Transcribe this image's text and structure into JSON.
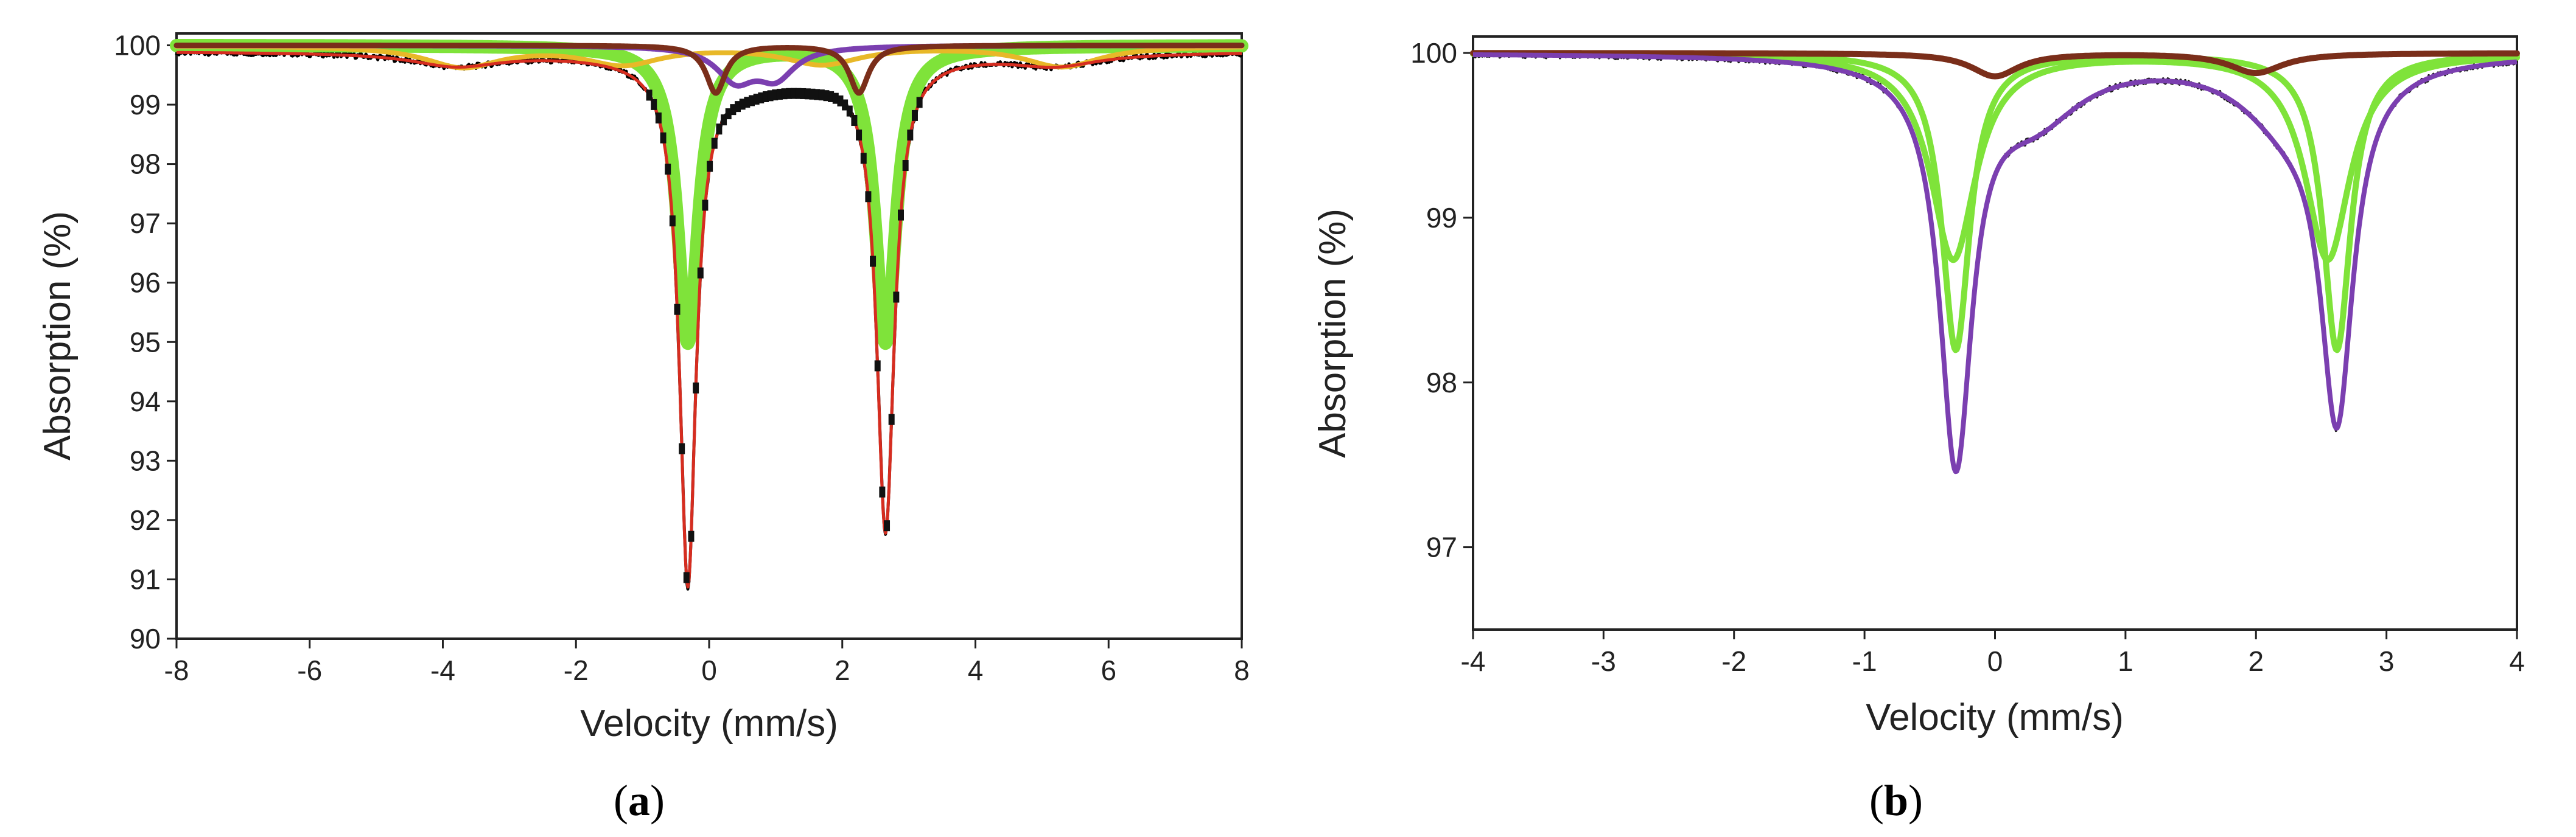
{
  "chart_data": [
    {
      "panel": "a",
      "type": "line",
      "caption": {
        "open": "(",
        "letter": "a",
        "close": ")"
      },
      "xlabel": "Velocity (mm/s)",
      "ylabel": "Absorption (%)",
      "xlim": [
        -8,
        8
      ],
      "ylim": [
        90,
        100.2
      ],
      "xticks": [
        -8,
        -6,
        -4,
        -2,
        0,
        2,
        4,
        6,
        8
      ],
      "yticks": [
        90,
        91,
        92,
        93,
        94,
        95,
        96,
        97,
        98,
        99,
        100
      ],
      "grid": false,
      "legend": "none",
      "components": [
        {
          "color": "#7fe33a",
          "width": 22,
          "baseline": 100,
          "peaks": [
            {
              "x0": -0.32,
              "depth": 5.0,
              "w": 0.38
            },
            {
              "x0": 2.65,
              "depth": 5.0,
              "w": 0.38
            }
          ]
        },
        {
          "color": "#e8b828",
          "width": 8,
          "baseline": 100,
          "peaks": [
            {
              "x0": -3.7,
              "depth": 0.35,
              "w": 1.4
            },
            {
              "x0": -1.3,
              "depth": 0.3,
              "w": 1.4
            },
            {
              "x0": 1.7,
              "depth": 0.3,
              "w": 1.4
            },
            {
              "x0": 5.3,
              "depth": 0.35,
              "w": 1.4
            }
          ]
        },
        {
          "color": "#7b3fb0",
          "width": 9,
          "baseline": 100,
          "peaks": [
            {
              "x0": 0.4,
              "depth": 0.55,
              "w": 0.7
            },
            {
              "x0": 1.0,
              "depth": 0.5,
              "w": 0.7
            }
          ]
        },
        {
          "color": "#7a2e1a",
          "width": 9,
          "baseline": 100,
          "peaks": [
            {
              "x0": 0.1,
              "depth": 0.8,
              "w": 0.35
            },
            {
              "x0": 2.25,
              "depth": 0.8,
              "w": 0.35
            }
          ]
        }
      ],
      "total_fit": {
        "color": "#d62d20",
        "width": 5,
        "baseline": 99.9,
        "peaks": [
          {
            "x0": -0.32,
            "depth": 8.7,
            "w": 0.3
          },
          {
            "x0": 2.65,
            "depth": 7.9,
            "w": 0.32
          },
          {
            "x0": 0.5,
            "depth": 0.45,
            "w": 1.8
          },
          {
            "x0": 1.6,
            "depth": 0.3,
            "w": 1.6
          },
          {
            "x0": -3.8,
            "depth": 0.22,
            "w": 1.6
          },
          {
            "x0": 5.2,
            "depth": 0.2,
            "w": 1.6
          }
        ]
      },
      "data": {
        "color": "#000000",
        "width": 5
      }
    },
    {
      "panel": "b",
      "type": "line",
      "caption": {
        "open": "(",
        "letter": "b",
        "close": ")"
      },
      "xlabel": "Velocity (mm/s)",
      "ylabel": "Absorption (%)",
      "xlim": [
        -4,
        4
      ],
      "ylim": [
        96.5,
        100.1
      ],
      "xticks": [
        -4,
        -3,
        -2,
        -1,
        0,
        1,
        2,
        3,
        4
      ],
      "yticks": [
        97,
        98,
        99,
        100
      ],
      "grid": false,
      "legend": "none",
      "components": [
        {
          "color": "#7fe33a",
          "width": 10,
          "baseline": 100,
          "peaks": [
            {
              "x0": -0.3,
              "depth": 1.8,
              "w": 0.26
            },
            {
              "x0": 2.62,
              "depth": 1.8,
              "w": 0.26
            }
          ]
        },
        {
          "color": "#7fe33a",
          "width": 10,
          "baseline": 100,
          "peaks": [
            {
              "x0": -0.32,
              "depth": 1.25,
              "w": 0.42
            },
            {
              "x0": 2.55,
              "depth": 1.25,
              "w": 0.42
            }
          ]
        },
        {
          "color": "#7a2e1a",
          "width": 10,
          "baseline": 100,
          "peaks": [
            {
              "x0": 0.0,
              "depth": 0.14,
              "w": 0.45
            },
            {
              "x0": 2.0,
              "depth": 0.12,
              "w": 0.5
            }
          ]
        }
      ],
      "total_fit": {
        "color": "#7b3fb0",
        "width": 8,
        "baseline": 100,
        "peaks": [
          {
            "x0": -0.3,
            "depth": 2.4,
            "w": 0.3
          },
          {
            "x0": 2.62,
            "depth": 2.05,
            "w": 0.3
          },
          {
            "x0": 0.3,
            "depth": 0.35,
            "w": 0.9
          },
          {
            "x0": 2.25,
            "depth": 0.35,
            "w": 0.9
          }
        ]
      },
      "data": {
        "color": "#1a1a1a",
        "width": 4
      }
    }
  ]
}
